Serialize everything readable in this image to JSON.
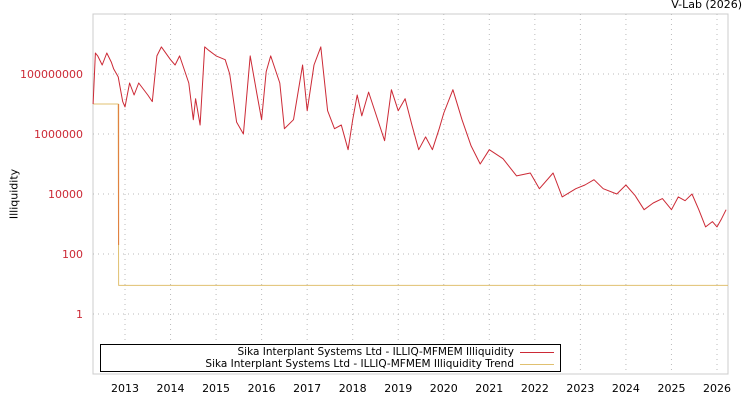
{
  "credit": "V-Lab (2026)",
  "chart_data": {
    "type": "line",
    "title": "",
    "xlabel": "",
    "ylabel": "Illiquidity",
    "yscale": "log",
    "ylim": [
      0.01,
      10000000000
    ],
    "xlim": [
      2012.3,
      2026.25
    ],
    "grid": true,
    "legend_position": "bottom",
    "x_ticks": [
      "2013",
      "2014",
      "2015",
      "2016",
      "2017",
      "2018",
      "2019",
      "2020",
      "2021",
      "2022",
      "2023",
      "2024",
      "2025",
      "2026"
    ],
    "y_ticks": [
      "100000000",
      "1000000",
      "10000",
      "100",
      "1"
    ],
    "series": [
      {
        "name": "Sika Interplant Systems Ltd - ILLIQ-MFMEM Illiquidity",
        "color": "#cc2a36",
        "x": [
          2012.3,
          2012.35,
          2012.4,
          2012.5,
          2012.6,
          2012.7,
          2012.75,
          2012.85,
          2012.95,
          2013.0,
          2013.1,
          2013.2,
          2013.3,
          2013.5,
          2013.6,
          2013.7,
          2013.8,
          2014.0,
          2014.1,
          2014.2,
          2014.4,
          2014.5,
          2014.55,
          2014.65,
          2014.75,
          2014.85,
          2015.0,
          2015.2,
          2015.3,
          2015.45,
          2015.6,
          2015.75,
          2015.9,
          2016.0,
          2016.1,
          2016.2,
          2016.4,
          2016.5,
          2016.7,
          2016.9,
          2017.0,
          2017.15,
          2017.3,
          2017.45,
          2017.6,
          2017.75,
          2017.9,
          2018.0,
          2018.1,
          2018.2,
          2018.35,
          2018.5,
          2018.7,
          2018.85,
          2019.0,
          2019.15,
          2019.3,
          2019.45,
          2019.6,
          2019.75,
          2019.9,
          2020.0,
          2020.2,
          2020.4,
          2020.6,
          2020.8,
          2021.0,
          2021.3,
          2021.6,
          2021.9,
          2022.1,
          2022.4,
          2022.6,
          2022.9,
          2023.1,
          2023.3,
          2023.5,
          2023.8,
          2024.0,
          2024.2,
          2024.4,
          2024.6,
          2024.8,
          2025.0,
          2025.15,
          2025.3,
          2025.45,
          2025.6,
          2025.75,
          2025.9,
          2026.0,
          2026.1,
          2026.2
        ],
        "values": [
          10000000,
          500000000,
          400000000,
          200000000,
          500000000,
          250000000,
          150000000,
          80000000,
          12000000,
          8000000,
          50000000,
          20000000,
          50000000,
          20000000,
          12000000,
          400000000,
          800000000,
          300000000,
          200000000,
          400000000,
          50000000,
          3000000,
          15000000,
          2000000,
          800000000,
          600000000,
          400000000,
          300000000,
          100000000,
          2500000,
          1000000,
          400000000,
          20000000,
          3000000,
          120000000,
          400000000,
          50000000,
          1500000,
          3000000,
          200000000,
          6000000,
          200000000,
          800000000,
          6000000,
          1500000,
          2000000,
          300000,
          3000000,
          20000000,
          4000000,
          25000000,
          5000000,
          600000,
          30000000,
          6000000,
          15000000,
          2000000,
          300000,
          800000,
          300000,
          1500000,
          5000000,
          30000000,
          3000000,
          400000,
          100000,
          300000,
          150000,
          40000,
          50000,
          15000,
          50000,
          8000,
          15000,
          20000,
          30000,
          15000,
          10000,
          20000,
          9000,
          3000,
          5000,
          7000,
          3000,
          8000,
          6000,
          10000,
          3000,
          800,
          1200,
          800,
          1500,
          3000
        ]
      },
      {
        "name": "Sika Interplant Systems Ltd - ILLIQ-MFMEM Illiquidity Trend",
        "color": "#e0c070",
        "x": [
          2012.3,
          2012.85,
          2012.86,
          2026.25
        ],
        "values": [
          10000000,
          10000000,
          9,
          9
        ]
      }
    ]
  }
}
